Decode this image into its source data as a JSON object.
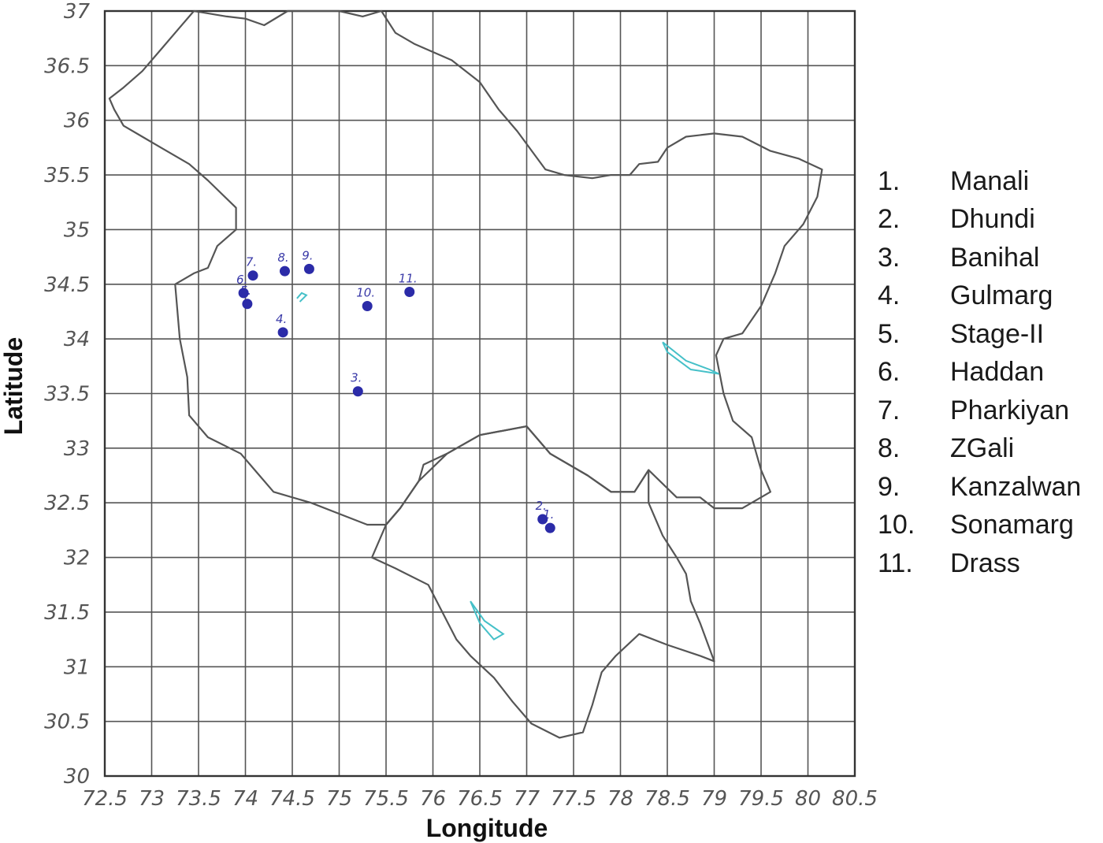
{
  "chart_data": {
    "type": "scatter",
    "xlabel": "Longitude",
    "ylabel": "Latitude",
    "xlim": [
      72.5,
      80.5
    ],
    "ylim": [
      30,
      37
    ],
    "xticks": [
      "72.5",
      "73",
      "73.5",
      "74",
      "74.5",
      "75",
      "75.5",
      "76",
      "76.5",
      "77",
      "77.5",
      "78",
      "78.5",
      "79",
      "79.5",
      "80",
      "80.5"
    ],
    "yticks": [
      "30",
      "30.5",
      "31",
      "31.5",
      "32",
      "32.5",
      "33",
      "33.5",
      "34",
      "34.5",
      "35",
      "35.5",
      "36",
      "36.5",
      "37"
    ],
    "grid": true,
    "legend_position": "right",
    "colors": {
      "points": "#2b2ba8",
      "border": "#555555",
      "lakes": "#45c0c8",
      "grid": "#555555"
    },
    "points": [
      {
        "id": "1",
        "name": "Manali",
        "lon": 77.25,
        "lat": 32.27
      },
      {
        "id": "2",
        "name": "Dhundi",
        "lon": 77.17,
        "lat": 32.35
      },
      {
        "id": "3",
        "name": "Banihal",
        "lon": 75.2,
        "lat": 33.52
      },
      {
        "id": "4",
        "name": "Gulmarg",
        "lon": 74.4,
        "lat": 34.06
      },
      {
        "id": "5",
        "name": "Stage-II",
        "lon": 74.02,
        "lat": 34.32
      },
      {
        "id": "6",
        "name": "Haddan",
        "lon": 73.98,
        "lat": 34.42
      },
      {
        "id": "7",
        "name": "Pharkiyan",
        "lon": 74.08,
        "lat": 34.58
      },
      {
        "id": "8",
        "name": "ZGali",
        "lon": 74.42,
        "lat": 34.62
      },
      {
        "id": "9",
        "name": "Kanzalwan",
        "lon": 74.68,
        "lat": 34.64
      },
      {
        "id": "10",
        "name": "Sonamarg",
        "lon": 75.3,
        "lat": 34.3
      },
      {
        "id": "11",
        "name": "Drass",
        "lon": 75.75,
        "lat": 34.43
      }
    ],
    "legend": [
      {
        "num": "1.",
        "name": "Manali"
      },
      {
        "num": "2.",
        "name": "Dhundi"
      },
      {
        "num": "3.",
        "name": "Banihal"
      },
      {
        "num": "4.",
        "name": "Gulmarg"
      },
      {
        "num": "5.",
        "name": "Stage-II"
      },
      {
        "num": "6.",
        "name": "Haddan"
      },
      {
        "num": "7.",
        "name": "Pharkiyan"
      },
      {
        "num": "8.",
        "name": "ZGali"
      },
      {
        "num": "9.",
        "name": "Kanzalwan"
      },
      {
        "num": "10.",
        "name": "Sonamarg"
      },
      {
        "num": "11.",
        "name": "Drass"
      }
    ],
    "boundaries": {
      "jammu_kashmir": [
        [
          73.45,
          37.0
        ],
        [
          73.8,
          36.95
        ],
        [
          74.0,
          36.93
        ],
        [
          74.2,
          36.87
        ],
        [
          74.45,
          37.0
        ],
        [
          74.6,
          37.0
        ],
        [
          75.0,
          37.0
        ],
        [
          75.25,
          36.95
        ],
        [
          75.45,
          37.0
        ],
        [
          75.6,
          36.8
        ],
        [
          75.8,
          36.7
        ],
        [
          76.2,
          36.55
        ],
        [
          76.5,
          36.35
        ],
        [
          76.7,
          36.1
        ],
        [
          76.9,
          35.9
        ],
        [
          77.2,
          35.55
        ],
        [
          77.4,
          35.5
        ],
        [
          77.7,
          35.47
        ],
        [
          77.9,
          35.5
        ],
        [
          78.1,
          35.5
        ],
        [
          78.2,
          35.6
        ],
        [
          78.4,
          35.62
        ],
        [
          78.5,
          35.75
        ],
        [
          78.7,
          35.85
        ],
        [
          79.0,
          35.88
        ],
        [
          79.3,
          35.85
        ],
        [
          79.6,
          35.72
        ],
        [
          79.9,
          35.65
        ],
        [
          80.15,
          35.55
        ],
        [
          80.1,
          35.3
        ],
        [
          79.95,
          35.05
        ],
        [
          79.75,
          34.85
        ],
        [
          79.65,
          34.6
        ],
        [
          79.5,
          34.3
        ],
        [
          79.3,
          34.05
        ],
        [
          79.1,
          34.0
        ],
        [
          79.02,
          33.85
        ],
        [
          79.1,
          33.5
        ],
        [
          79.2,
          33.25
        ],
        [
          79.4,
          33.1
        ],
        [
          79.5,
          32.8
        ],
        [
          79.6,
          32.6
        ],
        [
          79.3,
          32.45
        ],
        [
          79.0,
          32.45
        ],
        [
          78.85,
          32.55
        ],
        [
          78.6,
          32.55
        ],
        [
          78.3,
          32.8
        ],
        [
          78.15,
          32.6
        ],
        [
          77.9,
          32.6
        ],
        [
          77.65,
          32.75
        ],
        [
          77.25,
          32.95
        ],
        [
          77.0,
          33.2
        ],
        [
          76.5,
          33.12
        ],
        [
          76.15,
          32.95
        ],
        [
          75.9,
          32.85
        ],
        [
          75.85,
          32.7
        ],
        [
          75.65,
          32.45
        ],
        [
          75.5,
          32.3
        ],
        [
          75.3,
          32.3
        ],
        [
          75.0,
          32.4
        ],
        [
          74.7,
          32.5
        ],
        [
          74.3,
          32.6
        ],
        [
          74.1,
          32.8
        ],
        [
          73.95,
          32.95
        ],
        [
          73.6,
          33.1
        ],
        [
          73.4,
          33.3
        ],
        [
          73.38,
          33.65
        ],
        [
          73.3,
          34.0
        ],
        [
          73.25,
          34.5
        ],
        [
          73.45,
          34.6
        ],
        [
          73.6,
          34.65
        ],
        [
          73.7,
          34.85
        ],
        [
          73.9,
          35.0
        ],
        [
          73.9,
          35.2
        ],
        [
          73.6,
          35.45
        ],
        [
          73.4,
          35.6
        ],
        [
          73.1,
          35.75
        ],
        [
          72.9,
          35.85
        ],
        [
          72.7,
          35.95
        ],
        [
          72.6,
          36.1
        ],
        [
          72.55,
          36.2
        ],
        [
          72.7,
          36.3
        ],
        [
          72.9,
          36.45
        ],
        [
          73.1,
          36.65
        ],
        [
          73.3,
          36.85
        ],
        [
          73.45,
          37.0
        ]
      ],
      "himachal": [
        [
          75.85,
          32.7
        ],
        [
          76.15,
          32.95
        ],
        [
          76.5,
          33.12
        ],
        [
          77.0,
          33.2
        ],
        [
          77.25,
          32.95
        ],
        [
          77.65,
          32.75
        ],
        [
          77.9,
          32.6
        ],
        [
          78.15,
          32.6
        ],
        [
          78.3,
          32.8
        ],
        [
          78.3,
          32.5
        ],
        [
          78.45,
          32.2
        ],
        [
          78.6,
          32.0
        ],
        [
          78.7,
          31.85
        ],
        [
          78.75,
          31.6
        ],
        [
          78.85,
          31.4
        ],
        [
          79.0,
          31.05
        ],
        [
          78.85,
          31.1
        ],
        [
          78.5,
          31.2
        ],
        [
          78.2,
          31.3
        ],
        [
          77.95,
          31.1
        ],
        [
          77.8,
          30.95
        ],
        [
          77.7,
          30.65
        ],
        [
          77.6,
          30.4
        ],
        [
          77.35,
          30.35
        ],
        [
          77.05,
          30.48
        ],
        [
          76.85,
          30.68
        ],
        [
          76.65,
          30.9
        ],
        [
          76.4,
          31.1
        ],
        [
          76.25,
          31.25
        ],
        [
          76.1,
          31.5
        ],
        [
          75.95,
          31.75
        ],
        [
          75.6,
          31.9
        ],
        [
          75.35,
          32.0
        ],
        [
          75.5,
          32.3
        ],
        [
          75.65,
          32.45
        ],
        [
          75.85,
          32.7
        ]
      ]
    },
    "lakes": [
      [
        [
          74.55,
          34.37
        ],
        [
          74.6,
          34.42
        ],
        [
          74.65,
          34.4
        ],
        [
          74.58,
          34.34
        ]
      ],
      [
        [
          78.45,
          33.97
        ],
        [
          78.7,
          33.8
        ],
        [
          78.95,
          33.72
        ],
        [
          79.05,
          33.68
        ],
        [
          78.75,
          33.72
        ],
        [
          78.5,
          33.88
        ],
        [
          78.45,
          33.97
        ]
      ],
      [
        [
          76.4,
          31.6
        ],
        [
          76.5,
          31.4
        ],
        [
          76.65,
          31.25
        ],
        [
          76.75,
          31.3
        ],
        [
          76.55,
          31.42
        ],
        [
          76.4,
          31.6
        ]
      ]
    ]
  }
}
